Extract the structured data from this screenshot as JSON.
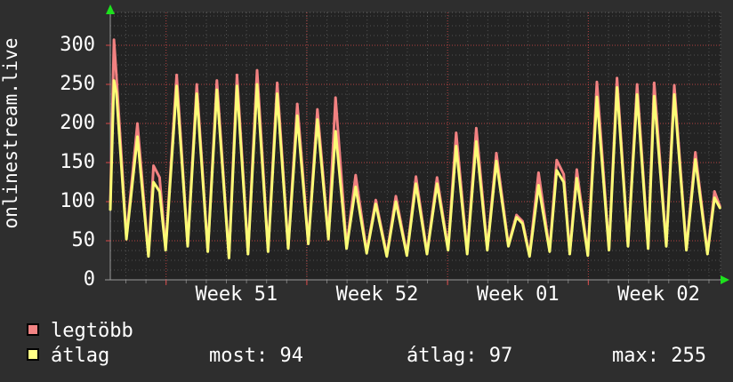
{
  "vertical_title": "onlinestream.live",
  "colors": {
    "background": "#2e2e2e",
    "plot_background": "#232323",
    "text": "#ffffff",
    "axis": "#9a9a9a",
    "minor_grid": "#9a9a9a",
    "major_grid": "#d84848",
    "arrow": "#1de21d",
    "series_max": "#f18181",
    "series_avg": "#fbfb76"
  },
  "stats": [
    {
      "label": "most",
      "value": 94,
      "text": "most: 94"
    },
    {
      "label": "átlag",
      "value": 97,
      "text": "átlag: 97"
    },
    {
      "label": "max",
      "value": 255,
      "text": "max: 255"
    }
  ],
  "chart_data": {
    "type": "line",
    "title": "onlinestream.live",
    "xlabel": "",
    "ylabel": "onlinestream.live",
    "x_unit": "days",
    "x_range_days": [
      0,
      30.35
    ],
    "y_range": [
      0,
      342
    ],
    "grid": true,
    "legend_position": "bottom-left",
    "y_major_ticks": [
      0,
      50,
      100,
      150,
      200,
      250,
      300
    ],
    "y_tick_labels": [
      "0",
      "50",
      "100",
      "150",
      "200",
      "250",
      "300"
    ],
    "y_minor_step": 12.5,
    "x_day_grid_offset": 0.774,
    "x_week_gridlines_days": [
      2.774,
      9.774,
      16.774,
      23.774
    ],
    "week_labels": [
      {
        "label": "Week 51",
        "center_day": 6.274
      },
      {
        "label": "Week 52",
        "center_day": 13.274
      },
      {
        "label": "Week 01",
        "center_day": 20.274
      },
      {
        "label": "Week 02",
        "center_day": 27.274
      }
    ],
    "x": [
      0.0,
      0.18,
      0.3,
      0.8,
      1.35,
      1.9,
      2.15,
      2.45,
      2.75,
      3.3,
      3.85,
      4.3,
      4.85,
      5.3,
      5.9,
      6.3,
      6.85,
      7.3,
      7.85,
      8.3,
      8.85,
      9.3,
      9.85,
      10.3,
      10.85,
      11.2,
      11.75,
      12.2,
      12.75,
      13.2,
      13.75,
      14.2,
      14.75,
      15.2,
      15.75,
      16.25,
      16.8,
      17.2,
      17.75,
      18.2,
      18.75,
      19.2,
      19.8,
      20.2,
      20.5,
      20.85,
      21.3,
      21.85,
      22.2,
      22.55,
      22.85,
      23.2,
      23.75,
      24.2,
      24.8,
      25.2,
      25.75,
      26.2,
      26.75,
      27.05,
      27.65,
      28.05,
      28.65,
      29.1,
      29.7,
      30.05,
      30.32
    ],
    "series": [
      {
        "name": "legtöbb",
        "color": "#f18181",
        "legend_color": "#f28383",
        "values": [
          95,
          307,
          262,
          55,
          200,
          32,
          146,
          131,
          40,
          262,
          45,
          250,
          38,
          255,
          30,
          262,
          35,
          268,
          38,
          252,
          42,
          225,
          48,
          218,
          55,
          233,
          42,
          134,
          36,
          102,
          32,
          107,
          33,
          132,
          35,
          131,
          40,
          188,
          35,
          194,
          40,
          162,
          45,
          83,
          75,
          32,
          137,
          38,
          153,
          135,
          35,
          141,
          33,
          253,
          40,
          258,
          45,
          250,
          42,
          252,
          45,
          249,
          40,
          163,
          35,
          113,
          94
        ]
      },
      {
        "name": "átlag",
        "color": "#fbfb76",
        "legend_color": "#ffff85",
        "values": [
          90,
          255,
          240,
          52,
          183,
          30,
          125,
          113,
          38,
          248,
          43,
          238,
          36,
          243,
          28,
          248,
          33,
          250,
          36,
          238,
          40,
          210,
          46,
          205,
          52,
          190,
          40,
          119,
          34,
          97,
          30,
          100,
          31,
          123,
          33,
          123,
          38,
          171,
          33,
          177,
          38,
          152,
          43,
          80,
          72,
          30,
          121,
          36,
          140,
          125,
          33,
          130,
          31,
          234,
          38,
          246,
          43,
          237,
          40,
          235,
          43,
          237,
          38,
          154,
          33,
          105,
          92
        ]
      }
    ],
    "summary": {
      "most": 94,
      "atlag": 97,
      "max": 255
    }
  }
}
